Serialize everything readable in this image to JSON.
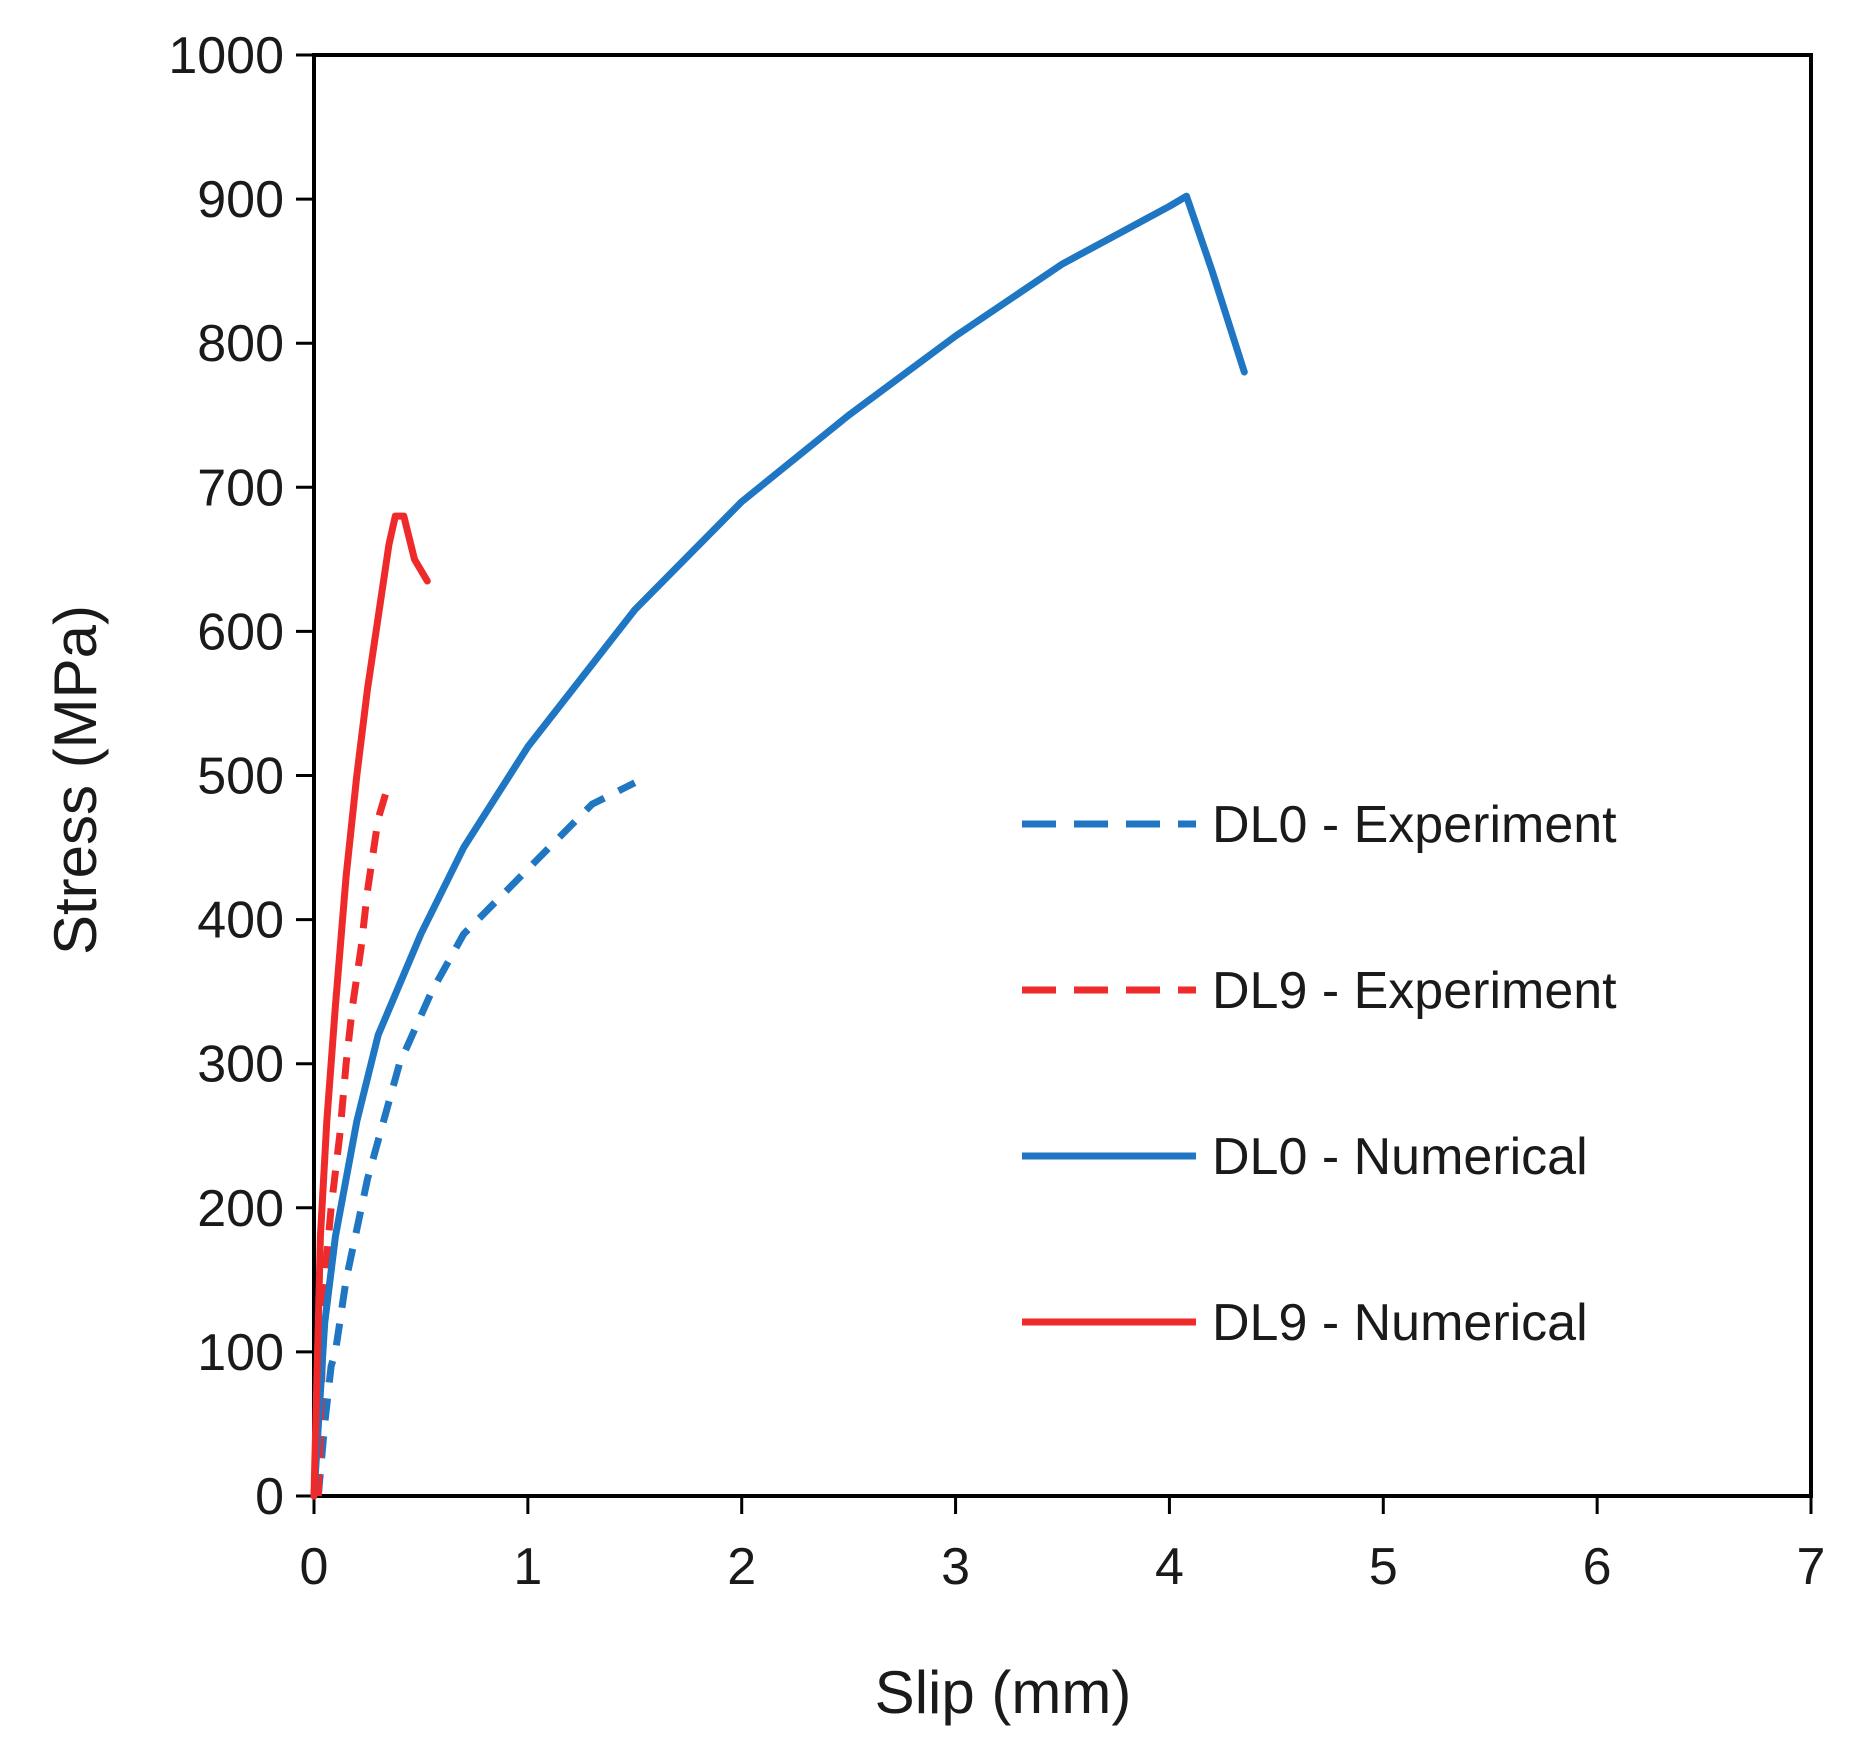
{
  "chart_data": {
    "type": "line",
    "title": "",
    "xlabel": "Slip (mm)",
    "ylabel": "Stress (MPa)",
    "xlim": [
      0,
      7
    ],
    "ylim": [
      0,
      1000
    ],
    "x_ticks": [
      "0",
      "1",
      "2",
      "3",
      "4",
      "5",
      "6",
      "7"
    ],
    "y_ticks": [
      "0",
      "100",
      "200",
      "300",
      "400",
      "500",
      "600",
      "700",
      "800",
      "900",
      "1000"
    ],
    "grid": false,
    "legend_position": "right",
    "series": [
      {
        "name": "DL0 - Experiment",
        "color": "#1f77c4",
        "style": "dashed",
        "x": [
          0.02,
          0.05,
          0.08,
          0.1,
          0.15,
          0.25,
          0.4,
          0.55,
          0.7,
          0.9,
          1.1,
          1.3,
          1.5
        ],
        "y": [
          0,
          50,
          90,
          100,
          150,
          220,
          300,
          350,
          390,
          420,
          450,
          480,
          495
        ]
      },
      {
        "name": "DL9 - Experiment",
        "color": "#ee2a2a",
        "style": "dashed",
        "x": [
          0.02,
          0.05,
          0.08,
          0.12,
          0.15,
          0.18,
          0.22,
          0.25,
          0.3,
          0.35
        ],
        "y": [
          0,
          150,
          200,
          250,
          300,
          340,
          380,
          420,
          470,
          495
        ]
      },
      {
        "name": "DL0 - Numerical",
        "color": "#1f77c4",
        "style": "solid",
        "x": [
          0,
          0.05,
          0.1,
          0.2,
          0.3,
          0.5,
          0.7,
          1,
          1.5,
          2,
          2.5,
          3,
          3.5,
          4,
          4.08,
          4.2,
          4.35
        ],
        "y": [
          0,
          120,
          180,
          260,
          320,
          390,
          450,
          520,
          615,
          690,
          750,
          805,
          855,
          895,
          902,
          850,
          780
        ]
      },
      {
        "name": "DL9 - Numerical",
        "color": "#ee2a2a",
        "style": "solid",
        "x": [
          0,
          0.03,
          0.06,
          0.1,
          0.15,
          0.2,
          0.25,
          0.3,
          0.35,
          0.38,
          0.42,
          0.47,
          0.53
        ],
        "y": [
          0,
          180,
          260,
          340,
          430,
          500,
          560,
          610,
          660,
          680,
          680,
          650,
          635
        ]
      }
    ]
  }
}
